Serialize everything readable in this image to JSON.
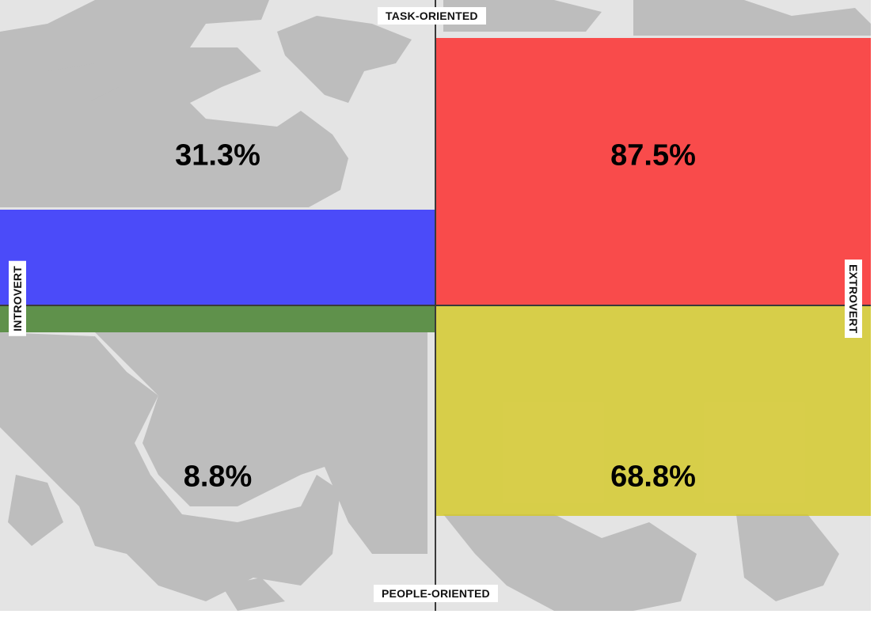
{
  "chart_data": {
    "type": "quadrant",
    "axes": {
      "top": "TASK-ORIENTED",
      "bottom": "PEOPLE-ORIENTED",
      "left": "INTROVERT",
      "right": "EXTROVERT"
    },
    "quadrants": [
      {
        "position": "top-left",
        "value": 31.3,
        "label": "31.3%",
        "color": "#2020ff"
      },
      {
        "position": "top-right",
        "value": 87.5,
        "label": "87.5%",
        "color": "#ff2020"
      },
      {
        "position": "bottom-left",
        "value": 8.8,
        "label": "8.8%",
        "color": "#3a7a20"
      },
      {
        "position": "bottom-right",
        "value": 68.8,
        "label": "68.8%",
        "color": "#d4c81e"
      }
    ],
    "scale_max": 100
  }
}
